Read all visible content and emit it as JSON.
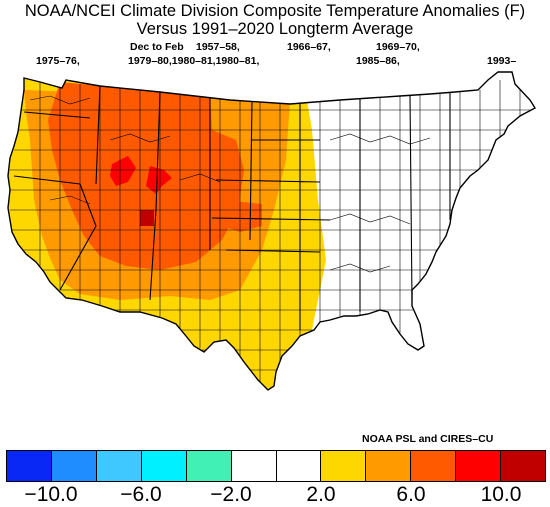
{
  "title_line1": "NOAA/NCEI Climate Division Composite Temperature Anomalies (F)",
  "title_line2": "Versus 1991–2020 Longterm Average",
  "season": "Dec to Feb",
  "years_row1": [
    "1957–58,",
    "1966–67,",
    "1969–70,"
  ],
  "years_row2": [
    "1975–76,",
    "1979–80,1980–81,1980–81,",
    "1985–86,",
    "1993–"
  ],
  "credit": "NOAA PSL and CIRES–CU",
  "legend": {
    "colors": [
      "#0a28f5",
      "#1f8cff",
      "#3ec8ff",
      "#00f0ff",
      "#40f0b4",
      "#ffffff",
      "#ffffff",
      "#ffd700",
      "#ff9a00",
      "#ff5a00",
      "#ff0000",
      "#c00000"
    ],
    "ticks": [
      "−10.0",
      "−6.0",
      "−2.0",
      "2.0",
      "6.0",
      "10.0"
    ]
  },
  "map_colors": {
    "white": "#ffffff",
    "yellow": "#ffd700",
    "orange": "#ff9a00",
    "dark_orange": "#ff5a00",
    "red": "#ff0000",
    "dark_red": "#c00000"
  }
}
